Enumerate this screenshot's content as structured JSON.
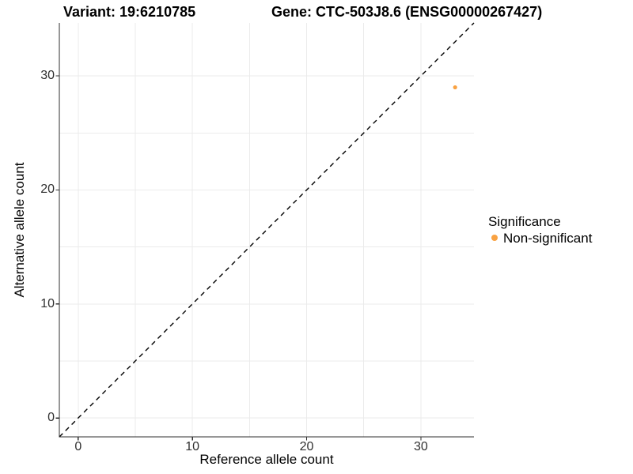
{
  "titles": {
    "variant": "Variant: 19:6210785",
    "gene": "Gene: CTC-503J8.6 (ENSG00000267427)"
  },
  "legend": {
    "title": "Significance",
    "items": [
      {
        "label": "Non-significant",
        "color": "#F9A242",
        "marker": "circle-icon"
      }
    ]
  },
  "chart_data": {
    "type": "scatter",
    "title": "Variant: 19:6210785 / Gene: CTC-503J8.6 (ENSG00000267427)",
    "xlabel": "Reference allele count",
    "ylabel": "Alternative allele count",
    "xlim": [
      -1.65,
      34.65
    ],
    "ylim": [
      -1.65,
      34.65
    ],
    "x_ticks": [
      0,
      10,
      20,
      30
    ],
    "y_ticks": [
      0,
      10,
      20,
      30
    ],
    "grid": true,
    "grid_step": 5,
    "legend_position": "right",
    "series": [
      {
        "name": "Non-significant",
        "color": "#F9A242",
        "points": [
          {
            "x": 33,
            "y": 29
          }
        ]
      }
    ],
    "reference_line": {
      "type": "identity",
      "slope": 1,
      "intercept": 0,
      "style": "dashed",
      "color": "#000000"
    }
  },
  "colors": {
    "background": "#FFFFFF",
    "grid": "#EBEBEB",
    "axis": "#2F2F2F",
    "tick_text": "#303030",
    "point": "#F9A242"
  }
}
